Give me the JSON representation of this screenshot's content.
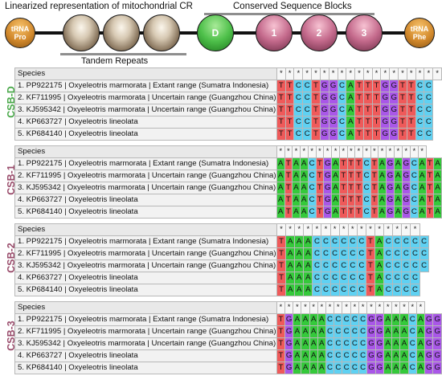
{
  "header": {
    "title": "Linearized representation of mitochondrial CR",
    "csb_title": "Conserved Sequence Blocks",
    "tandem_label": "Tandem Repeats",
    "trna_pro": [
      "tRNA",
      "Pro"
    ],
    "trna_phe": [
      "tRNA",
      "Phe"
    ],
    "csb_d": "D",
    "csb_nodes": [
      "1",
      "2",
      "3"
    ]
  },
  "species_header": "Species",
  "colors": {
    "A": "#35c93b",
    "T": "#ef5a5a",
    "C": "#5fd1f2",
    "G": "#a957e8"
  },
  "blocks": [
    {
      "label": "CSB-D",
      "label_color": "#4aa84a",
      "stars": 19,
      "rows": [
        {
          "name": "1. PP922175 | Oxyeleotris marmorata | Extant range (Sumatra Indonesia)",
          "seq": "TTCCTGGCATTTGGTTCC"
        },
        {
          "name": "2. KF711995 | Oxyeleotris marmorata | Uncertain range (Guangzhou China)",
          "seq": "TTCCTGGCATTTGGTTCC"
        },
        {
          "name": "3. KJ595342 | Oxyeleotris marmorata | Uncertain range (Guangzhou China)",
          "seq": "TTCCTGGCATTTGGTTCC"
        },
        {
          "name": "4. KP663727 | Oxyeleotris lineolata",
          "seq": "TTCCTGGCATTTGGTTCC"
        },
        {
          "name": "5. KP684140 | Oxyeleotris lineolata",
          "seq": "TTCCTGGCATTTGGTTCC"
        }
      ]
    },
    {
      "label": "CSB-1",
      "label_color": "#9a4d6c",
      "stars": 19,
      "rows": [
        {
          "name": "1. PP922175 | Oxyeleotris marmorata | Extant range (Sumatra Indonesia)",
          "seq": "ATAACTGATTTCTAGAGCATA"
        },
        {
          "name": "2. KF711995 | Oxyeleotris marmorata | Uncertain range (Guangzhou China)",
          "seq": "ATAACTGATTTCTAGAGCATA"
        },
        {
          "name": "3. KJ595342 | Oxyeleotris marmorata | Uncertain range (Guangzhou China)",
          "seq": "ATAACTGATTTCTAGAGCATA"
        },
        {
          "name": "4. KP663727 | Oxyeleotris lineolata",
          "seq": "ATAACTGATTTCTAGAGCATA"
        },
        {
          "name": "5. KP684140 | Oxyeleotris lineolata",
          "seq": "ATAACTGATTTCTAGAGCATA"
        }
      ]
    },
    {
      "label": "CSB-2",
      "label_color": "#9a4d6c",
      "stars": 16,
      "rows": [
        {
          "name": "1. PP922175 | Oxyeleotris marmorata | Extant range (Sumatra Indonesia)",
          "seq": "TAAACCCCCCTACCCCC"
        },
        {
          "name": "2. KF711995 | Oxyeleotris marmorata | Uncertain range (Guangzhou China)",
          "seq": "TAAACCCCCCTACCCCC"
        },
        {
          "name": "3. KJ595342 | Oxyeleotris marmorata | Uncertain range (Guangzhou China)",
          "seq": "TAAACCCCCCTACCCCC"
        },
        {
          "name": "4. KP663727 | Oxyeleotris lineolata",
          "seq": "TAAACCCCCCTACCCC"
        },
        {
          "name": "5. KP684140 | Oxyeleotris lineolata",
          "seq": "TAAACCCCCCTACCCC"
        }
      ]
    },
    {
      "label": "CSB-3",
      "label_color": "#9a4d6c",
      "stars": 18,
      "rows": [
        {
          "name": "1. PP922175 | Oxyeleotris marmorata | Extant range (Sumatra Indonesia)",
          "seq": "TGAAAACCCCCGGAAACAGG"
        },
        {
          "name": "2. KF711995 | Oxyeleotris marmorata | Uncertain range (Guangzhou China)",
          "seq": "TGAAAACCCCCGGAAACAGG"
        },
        {
          "name": "3. KJ595342 | Oxyeleotris marmorata | Uncertain range (Guangzhou China)",
          "seq": "TGAAAACCCCCGGAAACAGG"
        },
        {
          "name": "4. KP663727 | Oxyeleotris lineolata",
          "seq": "TGAAAACCCCCGGAAACAGG"
        },
        {
          "name": "5. KP684140 | Oxyeleotris lineolata",
          "seq": "TGAAAACCCCCGGAAACAGG"
        }
      ]
    }
  ]
}
